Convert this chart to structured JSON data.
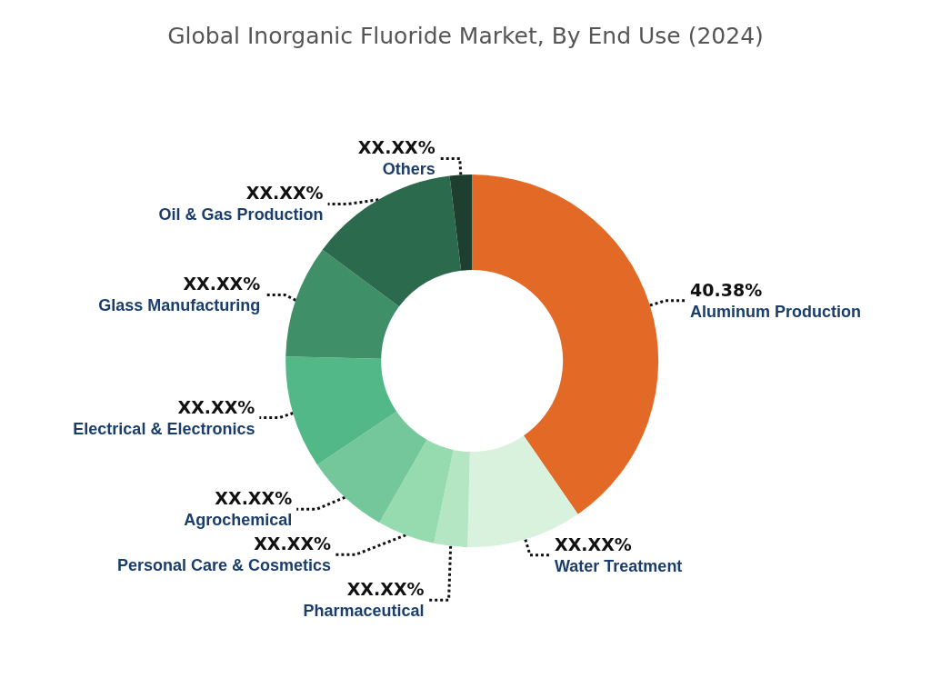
{
  "chart_data": {
    "type": "donut",
    "title": "Global Inorganic Fluoride Market, By End Use (2024)",
    "categories": [
      "Aluminum Production",
      "Water Treatment",
      "Pharmaceutical",
      "Personal Care & Cosmetics",
      "Agrochemical",
      "Electrical & Electronics",
      "Glass Manufacturing",
      "Oil & Gas Production",
      "Others"
    ],
    "values": [
      40.38,
      10,
      2.9,
      5,
      7.3,
      9.8,
      9.8,
      12.9,
      1.92
    ],
    "value_labels": [
      "40.38%",
      "XX.XX%",
      "XX.XX%",
      "XX.XX%",
      "XX.XX%",
      "XX.XX%",
      "XX.XX%",
      "XX.XX%",
      "XX.XX%"
    ],
    "colors": [
      "#e36a26",
      "#d9f2dd",
      "#b5e6c4",
      "#96dbb0",
      "#74c79a",
      "#52b887",
      "#3f8f69",
      "#2c6a4e",
      "#1e3f30"
    ],
    "legend": false
  }
}
